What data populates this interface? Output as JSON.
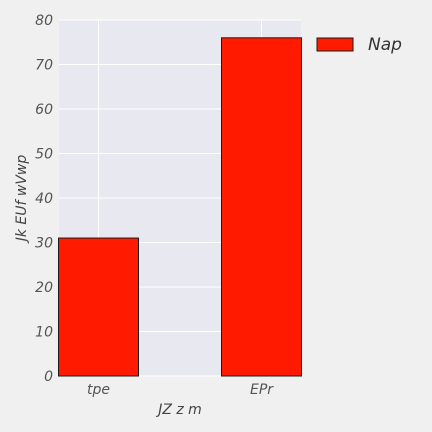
{
  "chart_data": {
    "type": "bar",
    "categories": [
      "tpe",
      "EPr"
    ],
    "series": [
      {
        "name": "Nap",
        "values": [
          31,
          76
        ],
        "color": "#ff1a00"
      }
    ],
    "xlabel": "JZ z m",
    "ylabel": "Jk EUf wVwp",
    "ylim": [
      0,
      80
    ],
    "yticks": [
      0,
      10,
      20,
      30,
      40,
      50,
      60,
      70,
      80
    ],
    "grid": true,
    "legend_position": "outside-right-top",
    "colors": {
      "background": "#f0f0f0",
      "plot_area": "#e8e8f0",
      "grid": "#ffffff",
      "bar_edge": "#1a1a1a"
    }
  }
}
